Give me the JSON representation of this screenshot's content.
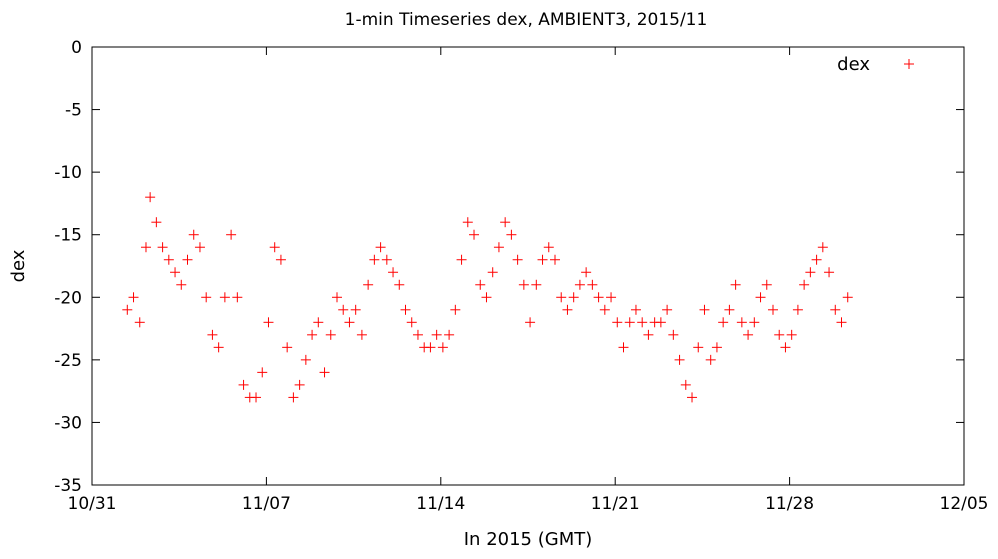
{
  "chart_data": {
    "type": "scatter",
    "title": "1-min Timeseries dex, AMBIENT3, 2015/11",
    "xlabel": "In 2015 (GMT)",
    "ylabel": "dex",
    "x_type": "date",
    "xlim": [
      "2015-10-31",
      "2015-12-05"
    ],
    "ylim": [
      -35,
      0
    ],
    "x_ticks": [
      "10/31",
      "11/07",
      "11/14",
      "11/21",
      "11/28",
      "12/05"
    ],
    "y_ticks": [
      "0",
      "-5",
      "-10",
      "-15",
      "-20",
      "-25",
      "-30",
      "-35"
    ],
    "grid": false,
    "legend_position": "top-right",
    "marker": "+",
    "color": "#ff0000",
    "series": [
      {
        "name": "dex",
        "values": [
          [
            "2015-11-01 10:00",
            -21
          ],
          [
            "2015-11-01 16:00",
            -20
          ],
          [
            "2015-11-01 22:00",
            -22
          ],
          [
            "2015-11-02 04:00",
            -16
          ],
          [
            "2015-11-02 08:00",
            -12
          ],
          [
            "2015-11-02 14:00",
            -14
          ],
          [
            "2015-11-02 20:00",
            -16
          ],
          [
            "2015-11-03 02:00",
            -17
          ],
          [
            "2015-11-03 08:00",
            -18
          ],
          [
            "2015-11-03 14:00",
            -19
          ],
          [
            "2015-11-03 20:00",
            -17
          ],
          [
            "2015-11-04 02:00",
            -15
          ],
          [
            "2015-11-04 08:00",
            -16
          ],
          [
            "2015-11-04 14:00",
            -20
          ],
          [
            "2015-11-04 20:00",
            -23
          ],
          [
            "2015-11-05 02:00",
            -24
          ],
          [
            "2015-11-05 08:00",
            -20
          ],
          [
            "2015-11-05 14:00",
            -15
          ],
          [
            "2015-11-05 20:00",
            -20
          ],
          [
            "2015-11-06 02:00",
            -27
          ],
          [
            "2015-11-06 08:00",
            -28
          ],
          [
            "2015-11-06 14:00",
            -28
          ],
          [
            "2015-11-06 20:00",
            -26
          ],
          [
            "2015-11-07 02:00",
            -22
          ],
          [
            "2015-11-07 08:00",
            -16
          ],
          [
            "2015-11-07 14:00",
            -17
          ],
          [
            "2015-11-07 20:00",
            -24
          ],
          [
            "2015-11-08 02:00",
            -28
          ],
          [
            "2015-11-08 08:00",
            -27
          ],
          [
            "2015-11-08 14:00",
            -25
          ],
          [
            "2015-11-08 20:00",
            -23
          ],
          [
            "2015-11-09 02:00",
            -22
          ],
          [
            "2015-11-09 08:00",
            -26
          ],
          [
            "2015-11-09 14:00",
            -23
          ],
          [
            "2015-11-09 20:00",
            -20
          ],
          [
            "2015-11-10 02:00",
            -21
          ],
          [
            "2015-11-10 08:00",
            -22
          ],
          [
            "2015-11-10 14:00",
            -21
          ],
          [
            "2015-11-10 20:00",
            -23
          ],
          [
            "2015-11-11 02:00",
            -19
          ],
          [
            "2015-11-11 08:00",
            -17
          ],
          [
            "2015-11-11 14:00",
            -16
          ],
          [
            "2015-11-11 20:00",
            -17
          ],
          [
            "2015-11-12 02:00",
            -18
          ],
          [
            "2015-11-12 08:00",
            -19
          ],
          [
            "2015-11-12 14:00",
            -21
          ],
          [
            "2015-11-12 20:00",
            -22
          ],
          [
            "2015-11-13 02:00",
            -23
          ],
          [
            "2015-11-13 08:00",
            -24
          ],
          [
            "2015-11-13 14:00",
            -24
          ],
          [
            "2015-11-13 20:00",
            -23
          ],
          [
            "2015-11-14 02:00",
            -24
          ],
          [
            "2015-11-14 08:00",
            -23
          ],
          [
            "2015-11-14 14:00",
            -21
          ],
          [
            "2015-11-14 20:00",
            -17
          ],
          [
            "2015-11-15 02:00",
            -14
          ],
          [
            "2015-11-15 08:00",
            -15
          ],
          [
            "2015-11-15 14:00",
            -19
          ],
          [
            "2015-11-15 20:00",
            -20
          ],
          [
            "2015-11-16 02:00",
            -18
          ],
          [
            "2015-11-16 08:00",
            -16
          ],
          [
            "2015-11-16 14:00",
            -14
          ],
          [
            "2015-11-16 20:00",
            -15
          ],
          [
            "2015-11-17 02:00",
            -17
          ],
          [
            "2015-11-17 08:00",
            -19
          ],
          [
            "2015-11-17 14:00",
            -22
          ],
          [
            "2015-11-17 20:00",
            -19
          ],
          [
            "2015-11-18 02:00",
            -17
          ],
          [
            "2015-11-18 08:00",
            -16
          ],
          [
            "2015-11-18 14:00",
            -17
          ],
          [
            "2015-11-18 20:00",
            -20
          ],
          [
            "2015-11-19 02:00",
            -21
          ],
          [
            "2015-11-19 08:00",
            -20
          ],
          [
            "2015-11-19 14:00",
            -19
          ],
          [
            "2015-11-19 20:00",
            -18
          ],
          [
            "2015-11-20 02:00",
            -19
          ],
          [
            "2015-11-20 08:00",
            -20
          ],
          [
            "2015-11-20 14:00",
            -21
          ],
          [
            "2015-11-20 20:00",
            -20
          ],
          [
            "2015-11-21 02:00",
            -22
          ],
          [
            "2015-11-21 08:00",
            -24
          ],
          [
            "2015-11-21 14:00",
            -22
          ],
          [
            "2015-11-21 20:00",
            -21
          ],
          [
            "2015-11-22 02:00",
            -22
          ],
          [
            "2015-11-22 08:00",
            -23
          ],
          [
            "2015-11-22 14:00",
            -22
          ],
          [
            "2015-11-22 20:00",
            -22
          ],
          [
            "2015-11-23 02:00",
            -21
          ],
          [
            "2015-11-23 08:00",
            -23
          ],
          [
            "2015-11-23 14:00",
            -25
          ],
          [
            "2015-11-23 20:00",
            -27
          ],
          [
            "2015-11-24 02:00",
            -28
          ],
          [
            "2015-11-24 08:00",
            -24
          ],
          [
            "2015-11-24 14:00",
            -21
          ],
          [
            "2015-11-24 20:00",
            -25
          ],
          [
            "2015-11-25 02:00",
            -24
          ],
          [
            "2015-11-25 08:00",
            -22
          ],
          [
            "2015-11-25 14:00",
            -21
          ],
          [
            "2015-11-25 20:00",
            -19
          ],
          [
            "2015-11-26 02:00",
            -22
          ],
          [
            "2015-11-26 08:00",
            -23
          ],
          [
            "2015-11-26 14:00",
            -22
          ],
          [
            "2015-11-26 20:00",
            -20
          ],
          [
            "2015-11-27 02:00",
            -19
          ],
          [
            "2015-11-27 08:00",
            -21
          ],
          [
            "2015-11-27 14:00",
            -23
          ],
          [
            "2015-11-27 20:00",
            -24
          ],
          [
            "2015-11-28 02:00",
            -23
          ],
          [
            "2015-11-28 08:00",
            -21
          ],
          [
            "2015-11-28 14:00",
            -19
          ],
          [
            "2015-11-28 20:00",
            -18
          ],
          [
            "2015-11-29 02:00",
            -17
          ],
          [
            "2015-11-29 08:00",
            -16
          ],
          [
            "2015-11-29 14:00",
            -18
          ],
          [
            "2015-11-29 20:00",
            -21
          ],
          [
            "2015-11-30 02:00",
            -22
          ],
          [
            "2015-11-30 08:00",
            -20
          ]
        ]
      }
    ]
  }
}
